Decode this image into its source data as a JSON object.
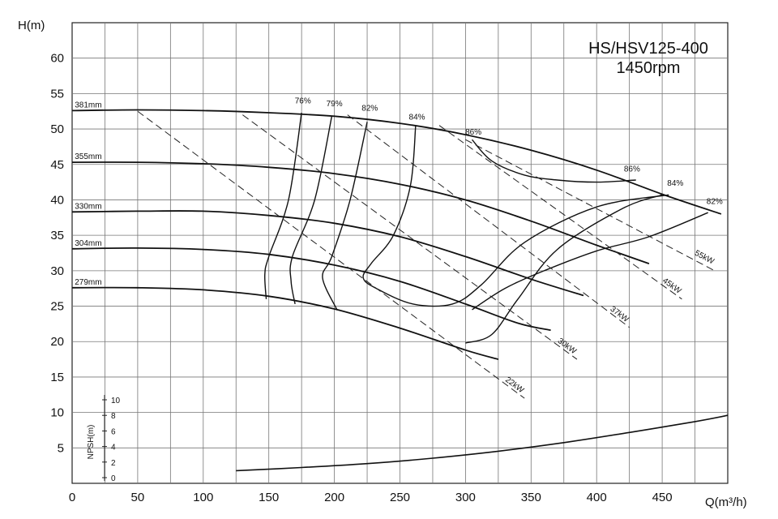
{
  "chart_data": {
    "type": "line",
    "title": "HS/HSV125-400",
    "subtitle": "1450rpm",
    "ylabel": "H(m)",
    "xlabel": "Q(m³/h)",
    "xlim": [
      0,
      500
    ],
    "ylim": [
      0,
      65
    ],
    "xticks": [
      "0",
      "50",
      "100",
      "150",
      "200",
      "250",
      "300",
      "350",
      "400",
      "450"
    ],
    "yticks": [
      "5",
      "10",
      "15",
      "20",
      "25",
      "30",
      "35",
      "40",
      "45",
      "50",
      "55",
      "60"
    ],
    "grid": true,
    "npsh_axis": {
      "label": "NPSH(m)",
      "ticks": [
        "0",
        "2",
        "4",
        "6",
        "8",
        "10"
      ],
      "range": [
        0,
        10
      ]
    },
    "impeller_curves": [
      {
        "name": "381mm",
        "x": [
          0,
          50,
          100,
          150,
          200,
          250,
          300,
          350,
          400,
          450,
          495
        ],
        "y": [
          52.6,
          52.7,
          52.6,
          52.3,
          51.8,
          50.8,
          49.2,
          47.0,
          44.2,
          40.8,
          38.0
        ]
      },
      {
        "name": "355mm",
        "x": [
          0,
          50,
          100,
          150,
          200,
          250,
          300,
          350,
          400,
          440
        ],
        "y": [
          45.3,
          45.3,
          45.1,
          44.6,
          43.7,
          42.2,
          40.0,
          37.0,
          33.6,
          31.0
        ]
      },
      {
        "name": "330mm",
        "x": [
          0,
          50,
          100,
          150,
          200,
          250,
          300,
          350,
          390
        ],
        "y": [
          38.3,
          38.4,
          38.4,
          37.8,
          36.7,
          34.8,
          32.0,
          28.8,
          26.5
        ]
      },
      {
        "name": "304mm",
        "x": [
          0,
          50,
          100,
          150,
          200,
          250,
          300,
          340,
          365
        ],
        "y": [
          33.1,
          33.2,
          33.0,
          32.3,
          30.8,
          28.5,
          25.3,
          22.6,
          21.6
        ]
      },
      {
        "name": "279mm",
        "x": [
          0,
          50,
          100,
          150,
          200,
          250,
          300,
          325
        ],
        "y": [
          27.6,
          27.6,
          27.3,
          26.4,
          24.6,
          21.9,
          18.8,
          17.5
        ]
      }
    ],
    "efficiency_curves": [
      {
        "name": "76%",
        "x": [
          175,
          165,
          150,
          147,
          148
        ],
        "y": [
          52.3,
          40.0,
          32.0,
          29.5,
          26.0
        ]
      },
      {
        "name": "79%",
        "x": [
          198,
          185,
          168,
          167,
          170
        ],
        "y": [
          51.8,
          40.0,
          32.0,
          28.5,
          25.3
        ]
      },
      {
        "name": "82%",
        "x": [
          225,
          212,
          198,
          191,
          202
        ],
        "y": [
          51.0,
          40.0,
          32.0,
          29.0,
          24.5
        ]
      },
      {
        "name": "84%",
        "x": [
          262,
          258,
          245,
          228,
          222,
          232,
          260,
          290,
          312,
          345,
          400,
          455
        ],
        "y": [
          50.5,
          42.0,
          35.0,
          31.0,
          29.0,
          27.5,
          25.3,
          25.3,
          28.0,
          34.0,
          39.0,
          40.7
        ]
      },
      {
        "name": "86%",
        "x": [
          305,
          320,
          345,
          370,
          400,
          430
        ],
        "y": [
          48.5,
          45.5,
          43.5,
          42.8,
          42.5,
          42.8
        ]
      },
      {
        "name": "84%",
        "x": [
          300,
          320,
          340,
          370,
          420,
          450
        ],
        "y": [
          19.8,
          21.0,
          26.0,
          33.0,
          38.8,
          40.7
        ]
      },
      {
        "name": "82%",
        "x": [
          305,
          330,
          360,
          400,
          440,
          485
        ],
        "y": [
          24.5,
          27.5,
          30.0,
          32.8,
          34.8,
          38.2
        ]
      }
    ],
    "efficiency_labels_pos": {
      "76%": [
        176,
        53.6
      ],
      "79%": [
        200,
        53.2
      ],
      "82%": [
        227,
        52.6
      ],
      "84%": [
        263,
        51.3
      ],
      "86%": [
        306,
        49.2
      ]
    },
    "power_lines": [
      {
        "name": "22kW",
        "x": [
          50,
          345
        ],
        "y": [
          52.5,
          12.0
        ]
      },
      {
        "name": "30kW",
        "x": [
          130,
          385
        ],
        "y": [
          52.0,
          17.5
        ]
      },
      {
        "name": "37kW",
        "x": [
          210,
          425
        ],
        "y": [
          52.0,
          22.0
        ]
      },
      {
        "name": "45kW",
        "x": [
          280,
          465
        ],
        "y": [
          50.5,
          26.0
        ]
      },
      {
        "name": "55kW",
        "x": [
          300,
          490
        ],
        "y": [
          48.5,
          30.0
        ]
      }
    ],
    "npsh_curve": {
      "x": [
        125,
        175,
        225,
        275,
        325,
        375,
        425,
        475,
        500
      ],
      "y": [
        0.9,
        1.3,
        1.8,
        2.5,
        3.4,
        4.5,
        5.8,
        7.2,
        8.0
      ]
    }
  }
}
